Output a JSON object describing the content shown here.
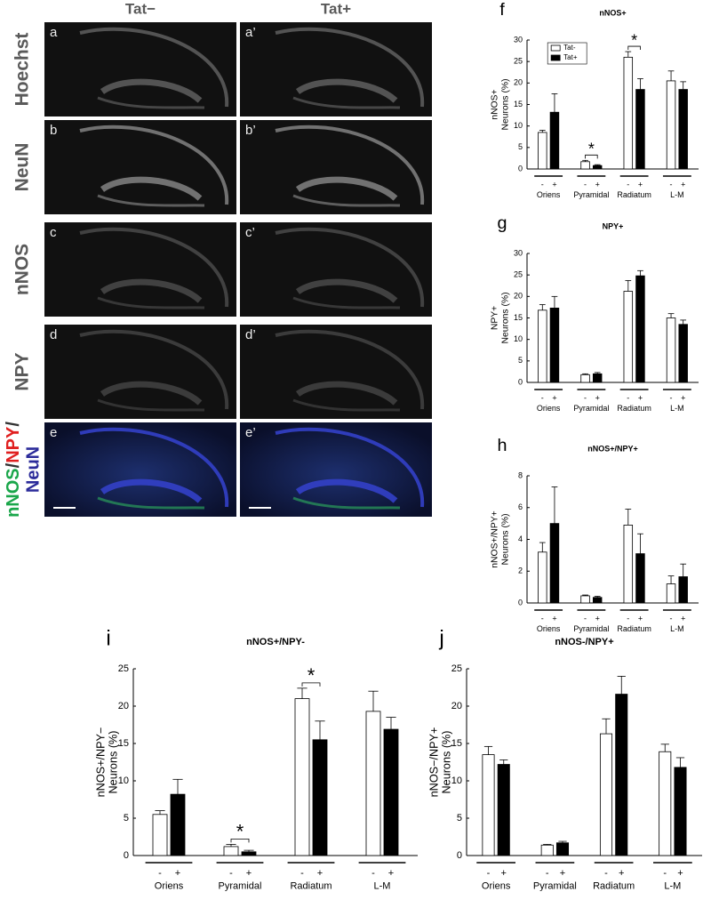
{
  "figure": {
    "columns": [
      "Tat−",
      "Tat+"
    ],
    "rows": [
      {
        "label": "Hoechst",
        "panels": [
          "a",
          "a’"
        ]
      },
      {
        "label": "NeuN",
        "panels": [
          "b",
          "b’"
        ]
      },
      {
        "label": "nNOS",
        "panels": [
          "c",
          "c’"
        ]
      },
      {
        "label": "NPY",
        "panels": [
          "d",
          "d’"
        ]
      },
      {
        "label_parts": [
          "nNOS",
          "/",
          "NPY",
          "/",
          "NeuN"
        ],
        "panels": [
          "e",
          "e’"
        ]
      }
    ]
  },
  "chart_data": [
    {
      "type": "bar",
      "panel": "f",
      "title": "nNOS+",
      "ylabel": [
        "nNOS+",
        "Neurons (%)"
      ],
      "categories": [
        "Oriens",
        "Pyramidal",
        "Radiatum",
        "L-M"
      ],
      "group_labels": [
        "-",
        "+"
      ],
      "series": [
        {
          "name": "Tat-",
          "color": "#ffffff",
          "values": [
            8.5,
            1.7,
            26,
            20.5
          ],
          "errors": [
            0.5,
            0.3,
            1.3,
            2.3
          ]
        },
        {
          "name": "Tat+",
          "color": "#000000",
          "values": [
            13.2,
            0.8,
            18.5,
            18.5
          ],
          "errors": [
            4.3,
            0.2,
            2.5,
            1.8
          ]
        }
      ],
      "significance": [
        null,
        "*",
        "*",
        null
      ],
      "legend": "top-left",
      "ylim": [
        0,
        30
      ],
      "yticks": [
        0,
        5,
        10,
        15,
        20,
        25,
        30
      ]
    },
    {
      "type": "bar",
      "panel": "g",
      "title": "NPY+",
      "ylabel": [
        "NPY+",
        "Neurons (%)"
      ],
      "categories": [
        "Oriens",
        "Pyramidal",
        "Radiatum",
        "L-M"
      ],
      "group_labels": [
        "-",
        "+"
      ],
      "series": [
        {
          "color": "#ffffff",
          "values": [
            16.8,
            1.8,
            21.2,
            15
          ],
          "errors": [
            1.3,
            0.2,
            2.5,
            1
          ]
        },
        {
          "color": "#000000",
          "values": [
            17.3,
            2,
            24.8,
            13.5
          ],
          "errors": [
            2.7,
            0.3,
            1.2,
            1
          ]
        }
      ],
      "ylim": [
        0,
        30
      ],
      "yticks": [
        0,
        5,
        10,
        15,
        20,
        25,
        30
      ]
    },
    {
      "type": "bar",
      "panel": "h",
      "title": "nNOS+/NPY+",
      "ylabel": [
        "nNOS+/NPY+",
        "Neurons (%)"
      ],
      "categories": [
        "Oriens",
        "Pyramidal",
        "Radiatum",
        "L-M"
      ],
      "group_labels": [
        "-",
        "+"
      ],
      "series": [
        {
          "color": "#ffffff",
          "values": [
            3.2,
            0.45,
            4.9,
            1.2
          ],
          "errors": [
            0.6,
            0.05,
            1.0,
            0.5
          ]
        },
        {
          "color": "#000000",
          "values": [
            5.0,
            0.35,
            3.1,
            1.65
          ],
          "errors": [
            2.3,
            0.07,
            1.25,
            0.8
          ]
        }
      ],
      "ylim": [
        0,
        8
      ],
      "yticks": [
        0,
        2,
        4,
        6,
        8
      ]
    },
    {
      "type": "bar",
      "panel": "i",
      "title": "nNOS+/NPY-",
      "ylabel": [
        "nNOS+/NPY−",
        "Neurons (%)"
      ],
      "categories": [
        "Oriens",
        "Pyramidal",
        "Radiatum",
        "L-M"
      ],
      "group_labels": [
        "-",
        "+"
      ],
      "series": [
        {
          "color": "#ffffff",
          "values": [
            5.5,
            1.2,
            21,
            19.3
          ],
          "errors": [
            0.5,
            0.3,
            1.4,
            2.7
          ]
        },
        {
          "color": "#000000",
          "values": [
            8.2,
            0.5,
            15.5,
            16.9
          ],
          "errors": [
            2,
            0.2,
            2.5,
            1.6
          ]
        }
      ],
      "significance": [
        null,
        "*",
        "*",
        null
      ],
      "ylim": [
        0,
        25
      ],
      "yticks": [
        0,
        5,
        10,
        15,
        20,
        25
      ]
    },
    {
      "type": "bar",
      "panel": "j",
      "title": "nNOS-/NPY+",
      "ylabel": [
        "nNOS−/NPY+",
        "Neurons (%)"
      ],
      "categories": [
        "Oriens",
        "Pyramidal",
        "Radiatum",
        "L-M"
      ],
      "group_labels": [
        "-",
        "+"
      ],
      "series": [
        {
          "color": "#ffffff",
          "values": [
            13.5,
            1.4,
            16.3,
            13.9
          ],
          "errors": [
            1.1,
            0.1,
            2,
            1
          ]
        },
        {
          "color": "#000000",
          "values": [
            12.2,
            1.7,
            21.6,
            11.8
          ],
          "errors": [
            0.6,
            0.2,
            2.4,
            1.3
          ]
        }
      ],
      "ylim": [
        0,
        25
      ],
      "yticks": [
        0,
        5,
        10,
        15,
        20,
        25
      ]
    }
  ]
}
